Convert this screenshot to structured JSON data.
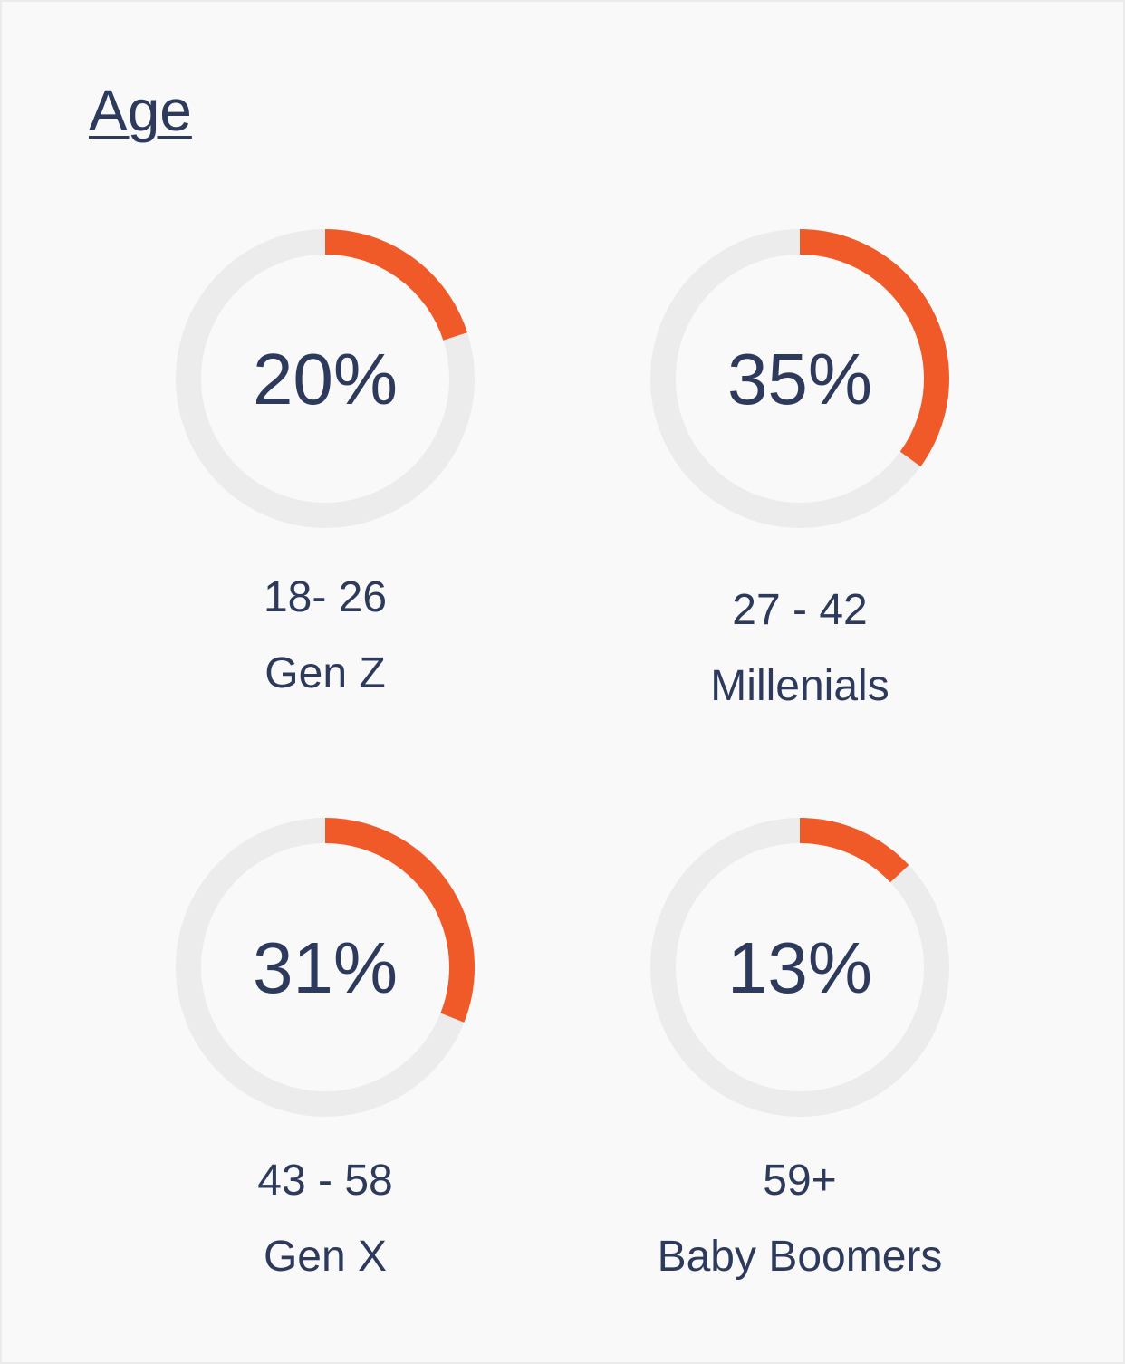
{
  "title": "Age",
  "colors": {
    "accent": "#f05a28",
    "track": "#ececec",
    "text": "#2d3a5c",
    "background": "#f9f9f9"
  },
  "chart_data": {
    "type": "donut",
    "items": [
      {
        "percent_label": "20%",
        "value": 20,
        "range": "18- 26",
        "generation": "Gen Z"
      },
      {
        "percent_label": "35%",
        "value": 35,
        "range": "27 - 42",
        "generation": "Millenials"
      },
      {
        "percent_label": "31%",
        "value": 31,
        "range": "43 - 58",
        "generation": "Gen X"
      },
      {
        "percent_label": "13%",
        "value": 13,
        "range": "59+",
        "generation": "Baby Boomers"
      }
    ]
  }
}
